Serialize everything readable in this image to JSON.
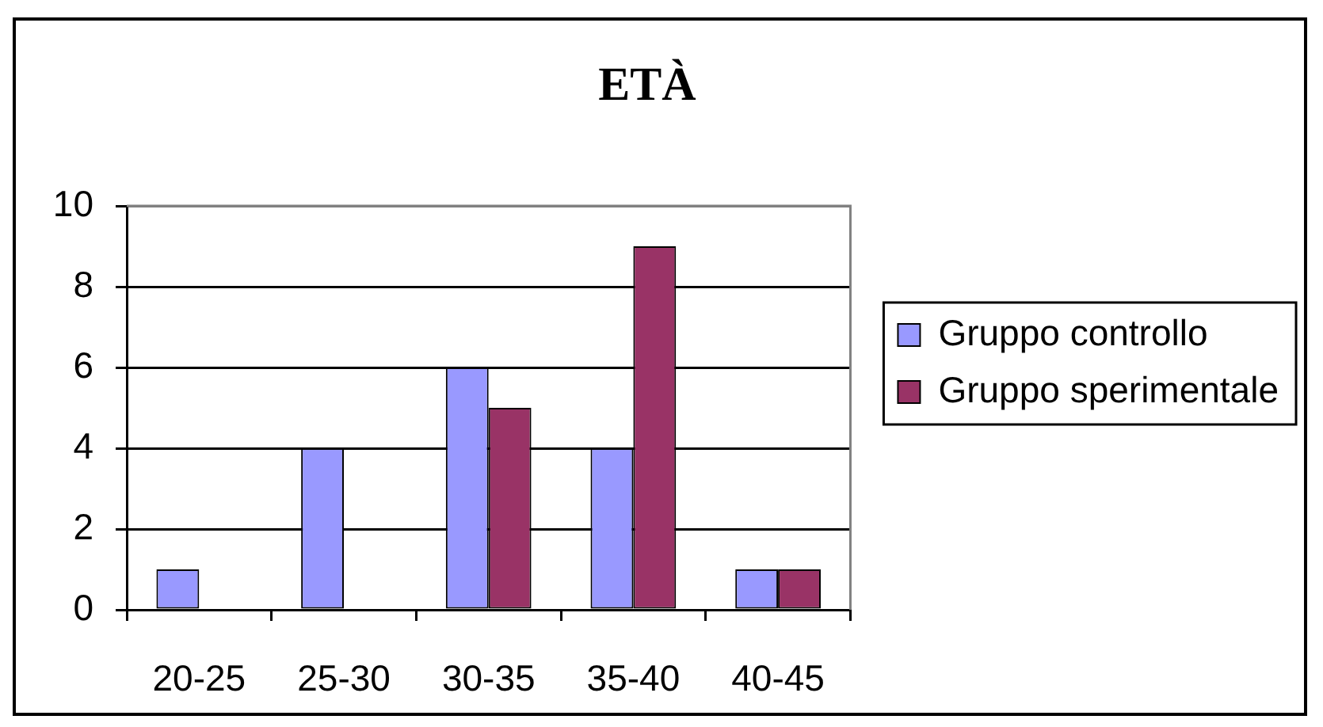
{
  "chart_data": {
    "type": "bar",
    "title": "ETÀ",
    "categories": [
      "20-25",
      "25-30",
      "30-35",
      "35-40",
      "40-45"
    ],
    "series": [
      {
        "name": "Gruppo controllo",
        "color": "#9999ff",
        "values": [
          1,
          4,
          6,
          4,
          1
        ]
      },
      {
        "name": "Gruppo sperimentale",
        "color": "#993366",
        "values": [
          0,
          0,
          5,
          9,
          1
        ]
      }
    ],
    "ylim": [
      0,
      10
    ],
    "yticks": [
      0,
      2,
      4,
      6,
      8,
      10
    ],
    "grid": "y",
    "legend": "right"
  }
}
